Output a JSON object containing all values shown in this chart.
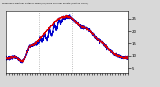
{
  "title": "Milwaukee Weather Outdoor Temp (vs) Wind Chill per Minute (Last 24 Hours)",
  "bg_color": "#d8d8d8",
  "plot_bg_color": "#ffffff",
  "line1_color": "#dd0000",
  "line2_color": "#0000cc",
  "ylim": [
    3,
    28
  ],
  "yticks": [
    5,
    10,
    15,
    20,
    25
  ],
  "ytick_labels": [
    "5",
    "10",
    "15",
    "20",
    "25"
  ],
  "num_points": 1440,
  "seed": 7,
  "vlines": [
    0.27,
    0.54
  ],
  "vline_color": "#aaaaaa"
}
